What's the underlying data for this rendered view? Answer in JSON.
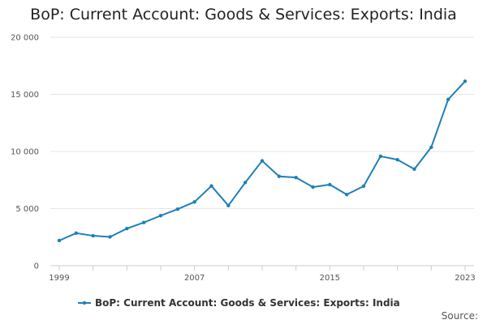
{
  "chart_data": {
    "type": "line",
    "title": "BoP: Current Account: Goods & Services: Exports: India",
    "xlabel": "",
    "ylabel": "",
    "x": [
      1999,
      2000,
      2001,
      2002,
      2003,
      2004,
      2005,
      2006,
      2007,
      2008,
      2009,
      2010,
      2011,
      2012,
      2013,
      2014,
      2015,
      2016,
      2017,
      2018,
      2019,
      2020,
      2021,
      2022,
      2023
    ],
    "series": [
      {
        "name": "BoP: Current Account: Goods & Services: Exports: India",
        "color": "#1f7fb8",
        "values": [
          2200,
          2850,
          2620,
          2520,
          3250,
          3780,
          4380,
          4950,
          5580,
          6980,
          5260,
          7280,
          9180,
          7820,
          7720,
          6880,
          7100,
          6230,
          6960,
          9580,
          9280,
          8450,
          10370,
          14550,
          16150
        ]
      }
    ],
    "x_ticks": [
      1999,
      2007,
      2015,
      2023
    ],
    "x_tick_labels": [
      "1999",
      "2007",
      "2015",
      "2023"
    ],
    "y_ticks": [
      0,
      5000,
      10000,
      15000,
      20000
    ],
    "y_tick_labels": [
      "0",
      "5 000",
      "10 000",
      "15 000",
      "20 000"
    ],
    "xlim": [
      1999,
      2023
    ],
    "ylim": [
      0,
      20000
    ],
    "grid": "horizontal",
    "legend_position": "bottom-center",
    "source_label": "Source:"
  }
}
